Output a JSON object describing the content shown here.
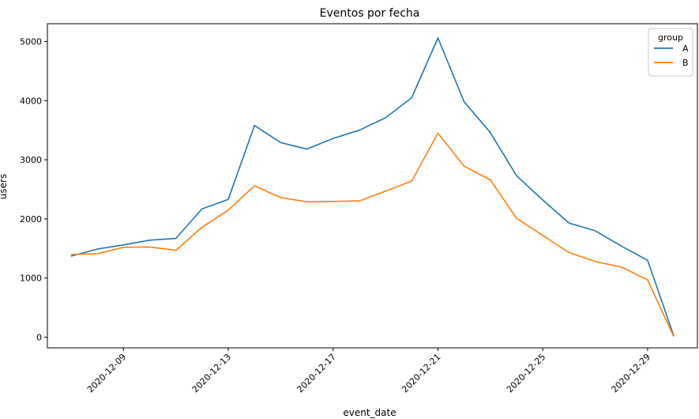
{
  "chart_data": {
    "type": "line",
    "title": "Eventos por fecha",
    "xlabel": "event_date",
    "ylabel": "users",
    "x": [
      "2020-12-07",
      "2020-12-08",
      "2020-12-09",
      "2020-12-10",
      "2020-12-11",
      "2020-12-12",
      "2020-12-13",
      "2020-12-14",
      "2020-12-15",
      "2020-12-16",
      "2020-12-17",
      "2020-12-18",
      "2020-12-19",
      "2020-12-20",
      "2020-12-21",
      "2020-12-22",
      "2020-12-23",
      "2020-12-24",
      "2020-12-25",
      "2020-12-26",
      "2020-12-27",
      "2020-12-28",
      "2020-12-29",
      "2020-12-30"
    ],
    "x_ticks": [
      "2020-12-09",
      "2020-12-13",
      "2020-12-17",
      "2020-12-21",
      "2020-12-25",
      "2020-12-29"
    ],
    "y_ticks": [
      0,
      1000,
      2000,
      3000,
      4000,
      5000
    ],
    "ylim": [
      -180,
      5300
    ],
    "grid": false,
    "legend": {
      "title": "group",
      "placement": "top-right"
    },
    "series": [
      {
        "name": "A",
        "color": "#1f77b4",
        "values": [
          1370,
          1490,
          1560,
          1640,
          1670,
          2170,
          2330,
          3580,
          3290,
          3180,
          3360,
          3500,
          3710,
          4050,
          5060,
          3980,
          3460,
          2730,
          2320,
          1930,
          1800,
          1540,
          1300,
          20
        ]
      },
      {
        "name": "B",
        "color": "#ff7f0e",
        "values": [
          1400,
          1410,
          1520,
          1525,
          1470,
          1860,
          2150,
          2560,
          2360,
          2290,
          2295,
          2305,
          2470,
          2640,
          3450,
          2890,
          2660,
          2010,
          1720,
          1430,
          1280,
          1185,
          970,
          10
        ]
      }
    ]
  }
}
